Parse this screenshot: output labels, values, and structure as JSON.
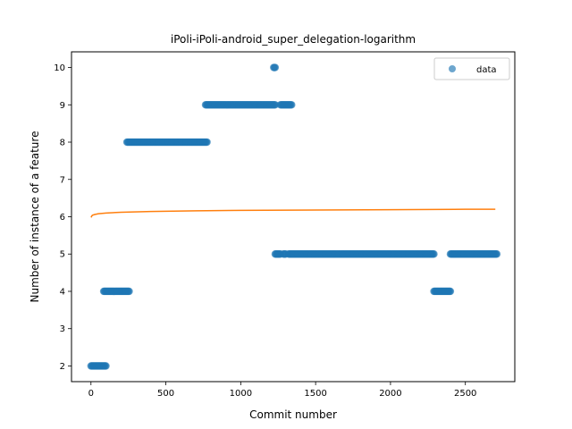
{
  "chart_data": {
    "type": "scatter",
    "title": "iPoli-iPoli-android_super_delegation-logarithm",
    "xlabel": "Commit number",
    "ylabel": "Number of instance of a feature",
    "xlim": [
      -130,
      2830
    ],
    "ylim": [
      1.58,
      10.42
    ],
    "xticks": [
      0,
      500,
      1000,
      1500,
      2000,
      2500
    ],
    "yticks": [
      2,
      3,
      4,
      5,
      6,
      7,
      8,
      9,
      10
    ],
    "grid": false,
    "legend": {
      "position": "top-right",
      "entries": [
        "data"
      ]
    },
    "colors": {
      "data": "#1f77b4",
      "fit": "#ff7f0e"
    },
    "series": [
      {
        "name": "data",
        "kind": "scatter",
        "segments": [
          {
            "x_start": 0,
            "x_end": 100,
            "y": 2
          },
          {
            "x_start": 85,
            "x_end": 255,
            "y": 4
          },
          {
            "x_start": 240,
            "x_end": 775,
            "y": 8
          },
          {
            "x_start": 765,
            "x_end": 1230,
            "y": 9
          },
          {
            "x_start": 1220,
            "x_end": 1230,
            "y": 10
          },
          {
            "x_start": 1230,
            "x_end": 1265,
            "y": 5
          },
          {
            "x_start": 1265,
            "x_end": 1340,
            "y": 9
          },
          {
            "x_start": 1285,
            "x_end": 1300,
            "y": 5
          },
          {
            "x_start": 1320,
            "x_end": 2290,
            "y": 5
          },
          {
            "x_start": 2290,
            "x_end": 2400,
            "y": 4
          },
          {
            "x_start": 2400,
            "x_end": 2710,
            "y": 5
          }
        ]
      },
      {
        "kind": "line",
        "function": "logarithmic",
        "points": [
          [
            1,
            5.98
          ],
          [
            5,
            6.02
          ],
          [
            10,
            6.04
          ],
          [
            25,
            6.06
          ],
          [
            50,
            6.08
          ],
          [
            100,
            6.1
          ],
          [
            200,
            6.12
          ],
          [
            400,
            6.14
          ],
          [
            700,
            6.16
          ],
          [
            1000,
            6.17
          ],
          [
            1500,
            6.18
          ],
          [
            2000,
            6.19
          ],
          [
            2500,
            6.2
          ],
          [
            2700,
            6.2
          ]
        ]
      }
    ]
  }
}
